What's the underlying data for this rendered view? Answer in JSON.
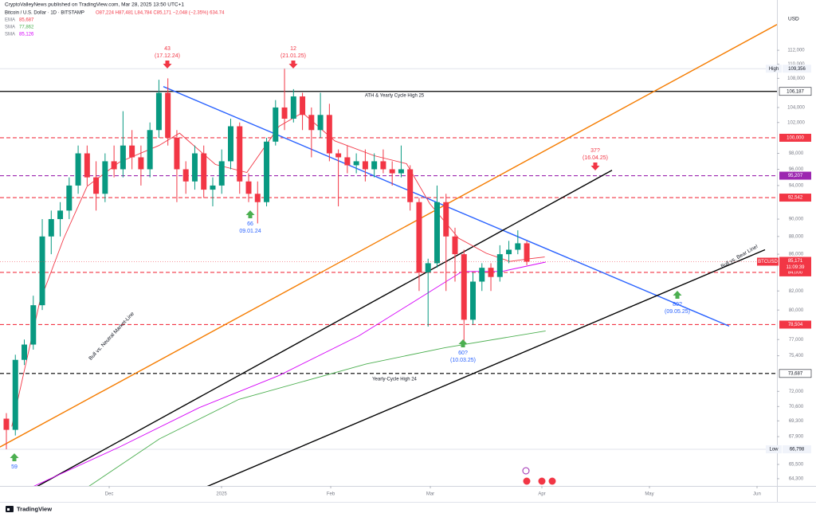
{
  "header": {
    "publisher": "CryptoValleyNews published on TradingView.com, Mar 28, 2025 13:50 UTC+1",
    "symbol": "Bitcoin / U.S. Dollar · 1D · BITSTAMP",
    "quote": "O87,224 H87,481 L84,784 C85,171 −2,048 (−2.35%) 634.74",
    "currency": "USD"
  },
  "footer": {
    "brand": "TradingView"
  },
  "chart_data": {
    "type": "candlestick",
    "log_scale": true,
    "grid": false,
    "up_color": "#089981",
    "down_color": "#f23645",
    "open": [
      69500,
      68500,
      75000,
      76500,
      80500,
      88000,
      90000,
      91000,
      94000,
      98000,
      95000,
      93000,
      97000,
      96000,
      99000,
      97500,
      96000,
      101000,
      106000,
      100000,
      96000,
      94500,
      98000,
      93500,
      94000,
      97000,
      101500,
      94500,
      93000,
      92000,
      99500,
      104000,
      102500,
      105500,
      103000,
      101000,
      103000,
      98000,
      97500,
      96500,
      97000,
      96000,
      97000,
      96000,
      95500,
      96000,
      92000,
      84000,
      85000,
      92000,
      88000,
      86000,
      79000,
      83000,
      84500,
      83500,
      86000,
      86500,
      87224
    ],
    "high": [
      70000,
      75500,
      77000,
      81500,
      90000,
      91000,
      92000,
      95000,
      99000,
      99000,
      97000,
      98000,
      99000,
      103500,
      101000,
      99000,
      102000,
      107800,
      108000,
      101000,
      97000,
      99000,
      99000,
      95000,
      98500,
      102500,
      102000,
      95500,
      94500,
      100000,
      105000,
      109356,
      106500,
      106000,
      104000,
      106000,
      104500,
      98500,
      99000,
      98000,
      98500,
      98000,
      98500,
      97000,
      99000,
      96500,
      92500,
      85500,
      94000,
      93000,
      89000,
      86500,
      84000,
      85000,
      85000,
      87000,
      87500,
      88700,
      87481
    ],
    "low": [
      66798,
      68000,
      74500,
      76000,
      80000,
      86000,
      88000,
      90000,
      93000,
      94000,
      91000,
      92000,
      95000,
      95000,
      96000,
      94000,
      95000,
      100000,
      99000,
      92000,
      93000,
      93500,
      92500,
      91500,
      93000,
      96000,
      93000,
      92000,
      89500,
      91500,
      99000,
      101000,
      102000,
      101000,
      97500,
      100000,
      97000,
      91500,
      95500,
      95500,
      94500,
      95000,
      95500,
      94000,
      95000,
      91000,
      82000,
      78300,
      84500,
      82000,
      83000,
      76600,
      78500,
      82000,
      82000,
      83000,
      85000,
      86000,
      84784
    ],
    "close": [
      68500,
      75000,
      76500,
      80500,
      88000,
      90000,
      91000,
      94000,
      98000,
      95000,
      93000,
      97000,
      96000,
      99000,
      97500,
      96000,
      101000,
      106000,
      100000,
      96000,
      94500,
      98000,
      93500,
      94000,
      97000,
      101500,
      94500,
      93000,
      92000,
      99500,
      104000,
      102500,
      105500,
      103000,
      101000,
      103000,
      98000,
      97500,
      96500,
      97000,
      96000,
      97000,
      96000,
      95500,
      96000,
      92000,
      84000,
      85000,
      92000,
      88000,
      86000,
      79000,
      83000,
      84500,
      83500,
      86000,
      86500,
      87224,
      85171
    ],
    "xlim": [
      -0.71,
      85.88
    ],
    "ylim": [
      63700,
      117700
    ],
    "xticks": [
      {
        "value": 11.46,
        "label": "Dec"
      },
      {
        "value": 23.98,
        "label": "2025"
      },
      {
        "value": 36.15,
        "label": "Feb"
      },
      {
        "value": 47.25,
        "label": "Mar"
      },
      {
        "value": 59.68,
        "label": "Apr"
      },
      {
        "value": 71.67,
        "label": "May"
      },
      {
        "value": 83.66,
        "label": "Jun"
      }
    ],
    "yticks": [
      {
        "value": 112000,
        "label": "112,000"
      },
      {
        "value": 110000,
        "label": "110,000"
      },
      {
        "value": 108000,
        "label": "108,000"
      },
      {
        "value": 104000,
        "label": "104,000"
      },
      {
        "value": 102000,
        "label": "102,000"
      },
      {
        "value": 98000,
        "label": "98,000"
      },
      {
        "value": 96000,
        "label": "96,000"
      },
      {
        "value": 94000,
        "label": "94,000"
      },
      {
        "value": 90000,
        "label": "90,000"
      },
      {
        "value": 88000,
        "label": "88,000"
      },
      {
        "value": 86000,
        "label": "86,000"
      },
      {
        "value": 82000,
        "label": "82,000"
      },
      {
        "value": 80000,
        "label": "80,000"
      },
      {
        "value": 77000,
        "label": "77,000"
      },
      {
        "value": 75400,
        "label": "75,400"
      },
      {
        "value": 72000,
        "label": "72,000"
      },
      {
        "value": 70600,
        "label": "70,600"
      },
      {
        "value": 69300,
        "label": "69,300"
      },
      {
        "value": 67900,
        "label": "67,900"
      },
      {
        "value": 65500,
        "label": "65,500"
      },
      {
        "value": 64300,
        "label": "64,300"
      }
    ],
    "series": [
      {
        "name": "EMA",
        "legend_value": "85,687",
        "color": "#f23645",
        "x": [
          0.6,
          3.7,
          6.4,
          9,
          12.6,
          17,
          19.3,
          23.3,
          26.8,
          30.4,
          33,
          36.6,
          41,
          44.6,
          47.2,
          50.4,
          53.5,
          56.1,
          58.3,
          60
        ],
        "values": [
          68800,
          80800,
          87800,
          93900,
          96900,
          99000,
          100600,
          96600,
          95600,
          101500,
          103300,
          99600,
          97700,
          96700,
          91800,
          87800,
          86100,
          85200,
          85500,
          85687
        ]
      },
      {
        "name": "SMA",
        "legend_value": "77,862",
        "color": "#4caf50",
        "x": [
          9.06,
          17.05,
          25.9,
          40.1,
          48.9,
          60.1
        ],
        "values": [
          63600,
          67700,
          71250,
          74600,
          76200,
          77862
        ]
      },
      {
        "name": "SMA",
        "legend_value": "85,126",
        "color": "#d500f9",
        "x": [
          2.84,
          12.6,
          21.5,
          30.4,
          39.3,
          46.4,
          50.8,
          55.2,
          60.1
        ],
        "values": [
          63600,
          67000,
          70500,
          73500,
          77380,
          81450,
          84100,
          84100,
          85126
        ]
      }
    ],
    "levels": [
      {
        "value": 106187,
        "label": "106,187",
        "color": "#000000",
        "style": "solid",
        "text": "ATH & Yearly Cycle High 25"
      },
      {
        "value": 100000,
        "label": "100,000",
        "color": "#f23645",
        "style": "dashed"
      },
      {
        "value": 95207,
        "label": "95,207",
        "color": "#9c27b0",
        "style": "dashed"
      },
      {
        "value": 92542,
        "label": "92,542",
        "color": "#f23645",
        "style": "dashed"
      },
      {
        "value": 84000,
        "label": "84,000",
        "color": "#f23645",
        "style": "dashed"
      },
      {
        "value": 78504,
        "label": "78,504",
        "color": "#f23645",
        "style": "dashed"
      },
      {
        "value": 73687,
        "label": "73,687",
        "color": "#000000",
        "style": "dashed",
        "text": "Yearly-Cycle High 24"
      }
    ],
    "extremes": [
      {
        "name": "High",
        "value": 109356,
        "label": "109,356"
      },
      {
        "name": "Low",
        "value": 66798,
        "label": "66,798"
      }
    ],
    "last_price": {
      "symbol": "BTCUSD",
      "value": 85171,
      "label": "85,171",
      "countdown": "11:09:39",
      "color": "#f23645"
    },
    "trendlines": [
      {
        "color": "#f57c00",
        "text": "Bull vs. Neutral Market-Line",
        "x": [
          -0.71,
          85.88
        ],
        "values": [
          67000,
          115800
        ]
      },
      {
        "color": "#2962ff",
        "x": [
          17.5,
          80.55
        ],
        "values": [
          106850,
          78350
        ]
      },
      {
        "color": "#000000",
        "x": [
          3.29,
          67.5
        ],
        "values": [
          63600,
          95880
        ]
      },
      {
        "color": "#000000",
        "text": "Bull vs. Bear Line!",
        "x": [
          22.2,
          84.55
        ],
        "values": [
          63600,
          86500
        ]
      }
    ],
    "annotations": [
      {
        "count": "43",
        "date": "(17.12.24)",
        "direction": "down",
        "color": "#f23645",
        "text_color": "#f23645"
      },
      {
        "count": "12",
        "date": "(21.01.25)",
        "direction": "down",
        "color": "#f23645",
        "text_color": "#f23645"
      },
      {
        "count": "66",
        "date": "09.01.24",
        "direction": "up",
        "color": "#4caf50",
        "text_color": "#2962ff"
      },
      {
        "count": "59",
        "direction": "up",
        "color": "#4caf50",
        "text_color": "#2962ff"
      },
      {
        "count": "37?",
        "date": "(16.04.25)",
        "direction": "down",
        "color": "#f23645",
        "text_color": "#f23645"
      },
      {
        "count": "80?",
        "date": "(09.05.25)",
        "direction": "up",
        "color": "#4caf50",
        "text_color": "#2962ff"
      },
      {
        "count": "60?",
        "date": "(10.03.25)",
        "direction": "up",
        "color": "#4caf50",
        "text_color": "#2962ff"
      }
    ]
  }
}
